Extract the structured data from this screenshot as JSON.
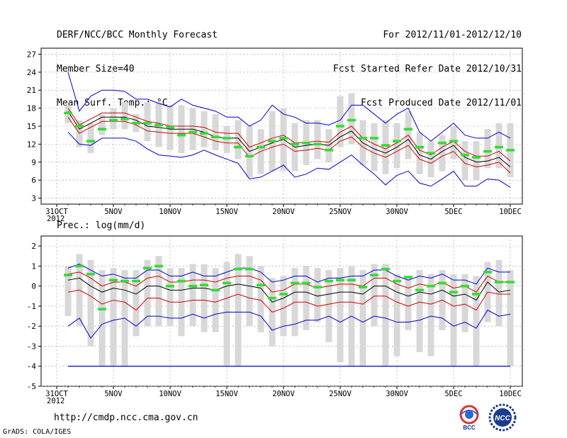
{
  "header": {
    "left": [
      "DERF/NCC/BCC Monthly Forecast",
      "Member Size=40",
      "Mean Surf. Temp.: °C"
    ],
    "right": [
      "For 2012/11/01-2012/12/10",
      "Fcst Started Refer Date 2012/10/31",
      "Fcst Produced Date 2012/11/01"
    ]
  },
  "footer": {
    "url": "http://cmdp.ncc.cma.gov.cn",
    "grads": "GrADS: COLA/IGES",
    "logo_left": "BCC",
    "logo_right": "NCC"
  },
  "colors": {
    "envelope": "#0000cc",
    "spread": "#cc0000",
    "mean": "#000000",
    "member": "#33dd33",
    "box": "#d8d8d8"
  },
  "x_ticks": [
    {
      "day": 0,
      "label": "31OCT",
      "sub": "2012"
    },
    {
      "day": 5,
      "label": "5NOV"
    },
    {
      "day": 10,
      "label": "10NOV"
    },
    {
      "day": 15,
      "label": "15NOV"
    },
    {
      "day": 20,
      "label": "20NOV"
    },
    {
      "day": 25,
      "label": "25NOV"
    },
    {
      "day": 30,
      "label": "30NOV"
    },
    {
      "day": 35,
      "label": "5DEC"
    },
    {
      "day": 40,
      "label": "10DEC"
    }
  ],
  "chart_data": [
    {
      "type": "line",
      "title": "Mean Surf. Temp.: °C",
      "ylim": [
        2,
        28
      ],
      "yticks": [
        3,
        6,
        9,
        12,
        15,
        18,
        21,
        24,
        27
      ],
      "x": [
        1,
        2,
        3,
        4,
        5,
        6,
        7,
        8,
        9,
        10,
        11,
        12,
        13,
        14,
        15,
        16,
        17,
        18,
        19,
        20,
        21,
        22,
        23,
        24,
        25,
        26,
        27,
        28,
        29,
        30,
        31,
        32,
        33,
        34,
        35,
        36,
        37,
        38,
        39,
        40
      ],
      "series": [
        {
          "name": "max",
          "role": "envelope",
          "values": [
            24.0,
            17.5,
            20.0,
            21.0,
            21.0,
            20.8,
            19.5,
            19.5,
            18.8,
            18.2,
            19.5,
            18.5,
            18.0,
            17.5,
            16.5,
            16.5,
            15.0,
            16.0,
            18.5,
            17.0,
            16.5,
            15.5,
            15.5,
            15.2,
            16.0,
            18.5,
            18.5,
            17.0,
            15.5,
            17.0,
            18.0,
            14.0,
            12.5,
            14.0,
            15.5,
            13.5,
            13.0,
            13.0,
            14.0,
            13.0
          ]
        },
        {
          "name": "upper",
          "role": "spread",
          "values": [
            18.0,
            15.2,
            16.2,
            17.2,
            17.2,
            17.2,
            16.5,
            15.8,
            15.5,
            15.0,
            15.0,
            15.0,
            14.8,
            14.0,
            13.8,
            13.8,
            11.5,
            12.2,
            13.0,
            13.5,
            12.2,
            12.3,
            12.5,
            12.3,
            14.0,
            15.0,
            13.0,
            12.0,
            11.2,
            12.2,
            13.5,
            11.0,
            10.2,
            11.5,
            12.5,
            10.8,
            10.0,
            10.0,
            10.8,
            9.2
          ]
        },
        {
          "name": "mean",
          "role": "mean",
          "values": [
            17.5,
            14.5,
            15.5,
            16.5,
            16.5,
            16.5,
            16.0,
            15.0,
            14.8,
            14.5,
            14.5,
            14.5,
            14.0,
            13.2,
            13.0,
            13.0,
            10.8,
            11.5,
            12.2,
            12.8,
            11.5,
            11.8,
            12.0,
            11.8,
            13.2,
            14.2,
            12.2,
            11.2,
            10.5,
            11.5,
            12.8,
            10.2,
            9.5,
            10.8,
            11.8,
            9.8,
            9.0,
            9.2,
            9.8,
            8.2
          ]
        },
        {
          "name": "lower",
          "role": "spread",
          "values": [
            16.5,
            13.8,
            14.8,
            15.8,
            15.8,
            15.8,
            15.2,
            14.2,
            14.0,
            13.8,
            13.8,
            13.8,
            13.2,
            12.5,
            12.2,
            12.2,
            9.8,
            10.8,
            11.5,
            12.0,
            10.8,
            11.0,
            11.3,
            11.0,
            12.5,
            13.2,
            11.5,
            10.5,
            9.8,
            10.8,
            11.8,
            9.5,
            8.8,
            10.0,
            10.8,
            8.8,
            8.2,
            8.5,
            9.0,
            7.2
          ]
        },
        {
          "name": "min",
          "role": "envelope",
          "values": [
            14.0,
            12.0,
            11.8,
            13.0,
            13.0,
            13.0,
            12.5,
            11.2,
            10.2,
            10.0,
            9.8,
            10.2,
            11.0,
            10.2,
            9.5,
            8.8,
            6.2,
            6.5,
            7.5,
            8.5,
            6.5,
            7.0,
            8.0,
            7.8,
            9.0,
            10.2,
            8.5,
            7.0,
            5.2,
            6.8,
            7.5,
            5.5,
            5.0,
            6.2,
            7.5,
            5.0,
            5.0,
            6.2,
            6.0,
            4.8
          ]
        },
        {
          "name": "member",
          "role": "member",
          "values": [
            17.2,
            15.0,
            12.5,
            14.5,
            16.0,
            16.2,
            15.5,
            15.5,
            15.2,
            14.8,
            13.5,
            14.0,
            13.8,
            13.2,
            13.0,
            11.5,
            10.0,
            11.5,
            12.5,
            13.0,
            12.0,
            12.2,
            12.0,
            11.0,
            15.0,
            16.0,
            13.0,
            13.0,
            11.8,
            12.5,
            14.5,
            11.5,
            10.5,
            12.2,
            12.5,
            10.2,
            9.8,
            10.8,
            11.5,
            11.0
          ]
        },
        {
          "name": "box_top",
          "role": "box",
          "values": [
            18.5,
            16.0,
            15.5,
            17.0,
            18.0,
            19.0,
            17.0,
            19.0,
            19.0,
            18.5,
            18.5,
            18.0,
            17.5,
            17.0,
            15.0,
            16.0,
            15.0,
            14.5,
            17.5,
            18.0,
            15.5,
            16.0,
            16.0,
            14.5,
            20.0,
            20.5,
            16.0,
            15.5,
            16.0,
            15.5,
            17.5,
            14.0,
            12.5,
            13.5,
            15.0,
            12.5,
            12.5,
            14.5,
            15.5,
            15.5
          ]
        },
        {
          "name": "box_bottom",
          "role": "box",
          "values": [
            15.5,
            11.5,
            10.5,
            13.5,
            14.5,
            14.5,
            14.0,
            12.5,
            11.5,
            11.0,
            10.5,
            11.0,
            11.5,
            11.0,
            10.5,
            9.5,
            6.5,
            7.0,
            7.5,
            7.5,
            7.5,
            8.5,
            9.5,
            9.0,
            11.5,
            12.0,
            8.5,
            7.5,
            7.0,
            8.0,
            9.5,
            7.0,
            6.5,
            7.5,
            9.5,
            6.0,
            6.0,
            8.0,
            8.0,
            6.5
          ]
        }
      ]
    },
    {
      "type": "line",
      "title": "Prec.: log(mm/d)",
      "ylim": [
        -5,
        2.5
      ],
      "yticks": [
        -5,
        -4,
        -3,
        -2,
        -1,
        0,
        1,
        2
      ],
      "x": [
        1,
        2,
        3,
        4,
        5,
        6,
        7,
        8,
        9,
        10,
        11,
        12,
        13,
        14,
        15,
        16,
        17,
        18,
        19,
        20,
        21,
        22,
        23,
        24,
        25,
        26,
        27,
        28,
        29,
        30,
        31,
        32,
        33,
        34,
        35,
        36,
        37,
        38,
        39,
        40
      ],
      "series": [
        {
          "name": "max",
          "role": "envelope",
          "values": [
            0.9,
            1.1,
            0.8,
            0.5,
            0.6,
            0.4,
            0.4,
            0.8,
            0.8,
            0.5,
            0.5,
            0.7,
            0.5,
            0.5,
            0.7,
            0.9,
            0.9,
            0.7,
            0.2,
            0.3,
            0.5,
            0.5,
            0.2,
            0.4,
            0.4,
            0.5,
            0.5,
            0.8,
            0.8,
            0.5,
            0.3,
            0.5,
            0.4,
            0.6,
            0.3,
            0.3,
            0.1,
            0.9,
            0.7,
            0.7
          ]
        },
        {
          "name": "upper",
          "role": "spread",
          "values": [
            0.6,
            0.7,
            0.4,
            0.0,
            0.2,
            0.2,
            0.0,
            0.4,
            0.5,
            0.2,
            0.2,
            0.3,
            0.3,
            0.2,
            0.4,
            0.5,
            0.5,
            0.3,
            -0.3,
            -0.2,
            0.1,
            0.1,
            -0.1,
            0.0,
            0.1,
            0.1,
            0.0,
            0.4,
            0.4,
            0.1,
            -0.1,
            0.1,
            0.0,
            0.2,
            -0.1,
            0.0,
            -0.3,
            0.5,
            0.2,
            0.2
          ]
        },
        {
          "name": "mean",
          "role": "mean",
          "values": [
            0.3,
            0.4,
            0.0,
            -0.3,
            -0.1,
            -0.2,
            -0.4,
            0.0,
            0.0,
            -0.2,
            -0.2,
            -0.1,
            -0.1,
            -0.2,
            0.0,
            0.1,
            0.0,
            -0.1,
            -0.8,
            -0.6,
            -0.3,
            -0.3,
            -0.5,
            -0.4,
            -0.3,
            -0.3,
            -0.4,
            0.0,
            0.0,
            -0.3,
            -0.5,
            -0.3,
            -0.4,
            -0.2,
            -0.5,
            -0.4,
            -0.7,
            0.2,
            -0.3,
            -0.2
          ]
        },
        {
          "name": "lower",
          "role": "spread",
          "values": [
            -0.3,
            -0.2,
            -0.5,
            -0.9,
            -0.7,
            -0.8,
            -1.2,
            -0.6,
            -0.6,
            -0.8,
            -0.8,
            -0.7,
            -0.7,
            -0.8,
            -0.6,
            -0.4,
            -0.6,
            -0.7,
            -1.3,
            -1.1,
            -0.8,
            -0.8,
            -1.0,
            -0.9,
            -0.8,
            -0.8,
            -0.9,
            -0.5,
            -0.5,
            -0.8,
            -1.0,
            -0.8,
            -0.9,
            -0.7,
            -1.0,
            -0.9,
            -1.2,
            -0.3,
            -0.4,
            -0.4
          ]
        },
        {
          "name": "min",
          "role": "envelope",
          "values": [
            -2.0,
            -1.6,
            -2.6,
            -1.9,
            -1.7,
            -1.6,
            -2.0,
            -1.5,
            -1.5,
            -1.6,
            -1.6,
            -1.4,
            -1.6,
            -1.4,
            -1.3,
            -1.3,
            -1.3,
            -1.5,
            -2.2,
            -2.0,
            -1.9,
            -1.7,
            -1.7,
            -1.5,
            -1.8,
            -1.5,
            -1.8,
            -1.5,
            -1.6,
            -1.8,
            -1.8,
            -1.7,
            -1.5,
            -1.6,
            -2.0,
            -1.8,
            -2.1,
            -1.2,
            -1.5,
            -1.4
          ]
        },
        {
          "name": "member",
          "role": "member",
          "values": [
            0.55,
            1.0,
            0.6,
            -1.15,
            0.3,
            0.25,
            0.25,
            0.9,
            1.0,
            0.0,
            0.25,
            0.0,
            0.05,
            -0.2,
            0.15,
            0.85,
            0.85,
            0.05,
            -0.6,
            -0.4,
            0.15,
            0.15,
            -0.05,
            0.25,
            0.3,
            0.3,
            -0.05,
            0.55,
            0.85,
            0.25,
            0.45,
            -0.2,
            0.0,
            0.15,
            -0.3,
            0.0,
            -0.4,
            0.7,
            0.2,
            0.2
          ]
        },
        {
          "name": "box_top",
          "role": "box",
          "values": [
            1.0,
            1.6,
            1.3,
            0.8,
            0.9,
            0.8,
            0.8,
            1.3,
            1.5,
            0.9,
            0.9,
            1.1,
            1.1,
            0.9,
            1.2,
            1.6,
            1.5,
            1.0,
            0.4,
            0.5,
            0.9,
            1.0,
            0.9,
            0.8,
            0.9,
            1.0,
            0.8,
            1.1,
            1.1,
            0.6,
            0.5,
            0.8,
            0.6,
            0.8,
            0.6,
            0.6,
            0.5,
            1.2,
            1.3,
            0.8
          ]
        },
        {
          "name": "box_bottom",
          "role": "box",
          "values": [
            -1.5,
            -2.0,
            -3.0,
            -4.0,
            -4.0,
            -4.0,
            -2.5,
            -2.0,
            -2.0,
            -2.0,
            -2.5,
            -2.0,
            -2.3,
            -2.3,
            -4.0,
            -4.0,
            -2.0,
            -2.3,
            -3.0,
            -2.5,
            -2.5,
            -2.2,
            -1.8,
            -2.8,
            -3.8,
            -4.0,
            -4.0,
            -2.0,
            -4.0,
            -3.5,
            -2.2,
            -3.3,
            -3.5,
            -2.2,
            -4.0,
            -2.3,
            -4.0,
            -1.8,
            -2.0,
            -4.0
          ]
        },
        {
          "name": "floor",
          "role": "baseline",
          "values": [
            -4,
            -4,
            -4,
            -4,
            -4,
            -4,
            -4,
            -4,
            -4,
            -4,
            -4,
            -4,
            -4,
            -4,
            -4,
            -4,
            -4,
            -4,
            -4,
            -4,
            -4,
            -4,
            -4,
            -4,
            -4,
            -4,
            -4,
            -4,
            -4,
            -4,
            -4,
            -4,
            -4,
            -4,
            -4,
            -4,
            -4,
            -4,
            -4,
            -4
          ]
        }
      ]
    }
  ]
}
